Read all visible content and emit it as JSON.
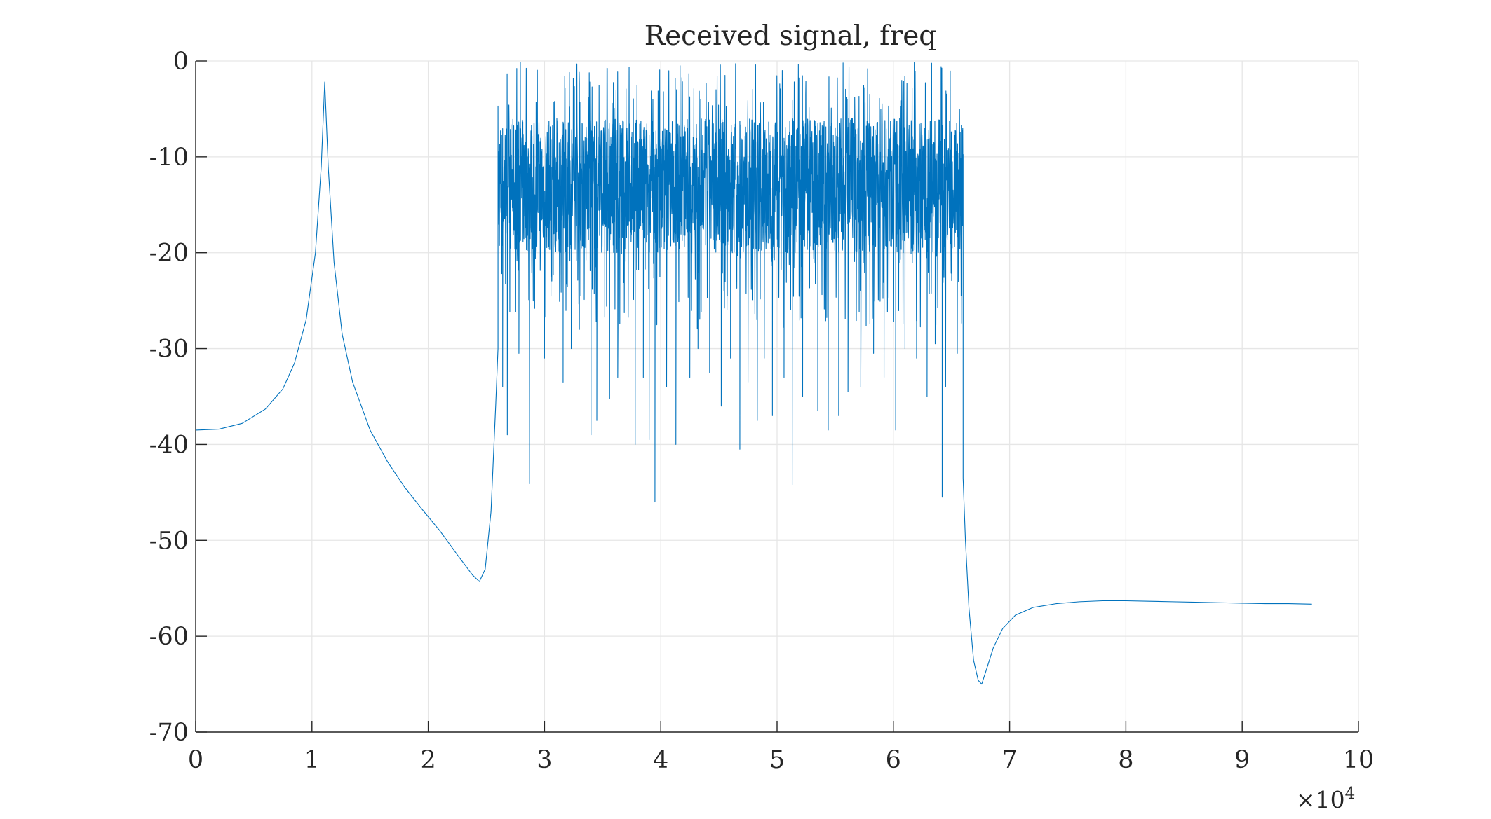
{
  "chart_data": {
    "type": "line",
    "title": "Received signal, freq",
    "xlabel": "",
    "ylabel": "",
    "xlim": [
      0,
      100000
    ],
    "ylim": [
      -70,
      0
    ],
    "x_exponent_label": "×10",
    "x_exponent_power": "4",
    "x_ticks": [
      0,
      10000,
      20000,
      30000,
      40000,
      50000,
      60000,
      70000,
      80000,
      90000,
      100000
    ],
    "x_tick_labels": [
      "0",
      "1",
      "2",
      "3",
      "4",
      "5",
      "6",
      "7",
      "8",
      "9",
      "10"
    ],
    "y_ticks": [
      0,
      -10,
      -20,
      -30,
      -40,
      -50,
      -60,
      -70
    ],
    "y_tick_labels": [
      "0",
      "-10",
      "-20",
      "-30",
      "-40",
      "-50",
      "-60",
      "-70"
    ],
    "grid": true,
    "line_color": "#0072BD",
    "series": [
      {
        "curve": [
          [
            0,
            -38.5
          ],
          [
            2000,
            -38.4
          ],
          [
            4000,
            -37.8
          ],
          [
            6000,
            -36.3
          ],
          [
            7500,
            -34.2
          ],
          [
            8500,
            -31.5
          ],
          [
            9500,
            -27.0
          ],
          [
            10300,
            -20.0
          ],
          [
            10800,
            -11.0
          ],
          [
            11100,
            -2.2
          ],
          [
            11400,
            -11.0
          ],
          [
            11900,
            -21.0
          ],
          [
            12600,
            -28.5
          ],
          [
            13500,
            -33.5
          ],
          [
            15000,
            -38.5
          ],
          [
            16500,
            -41.8
          ],
          [
            18000,
            -44.5
          ],
          [
            19500,
            -46.8
          ],
          [
            21000,
            -49.0
          ],
          [
            22500,
            -51.5
          ],
          [
            23800,
            -53.6
          ],
          [
            24400,
            -54.3
          ],
          [
            24900,
            -53.0
          ],
          [
            25400,
            -47.0
          ],
          [
            25800,
            -36.0
          ],
          [
            26000,
            -30.0
          ]
        ],
        "noise_band": {
          "x_start": 26000,
          "x_end": 66000,
          "core_range": [
            -20,
            -6
          ],
          "peak_max": -0.1,
          "dips": [
            [
              26400,
              -34.0
            ],
            [
              26800,
              -39.0
            ],
            [
              27800,
              -30.5
            ],
            [
              28700,
              -44.1
            ],
            [
              30000,
              -31.0
            ],
            [
              31600,
              -33.5
            ],
            [
              32300,
              -30.0
            ],
            [
              33000,
              -28.0
            ],
            [
              34000,
              -39.0
            ],
            [
              34500,
              -37.5
            ],
            [
              35600,
              -35.2
            ],
            [
              36300,
              -33.0
            ],
            [
              37800,
              -40.0
            ],
            [
              38500,
              -33.0
            ],
            [
              39000,
              -39.5
            ],
            [
              39500,
              -46.0
            ],
            [
              40500,
              -34.0
            ],
            [
              41300,
              -40.0
            ],
            [
              42500,
              -33.0
            ],
            [
              43200,
              -30.0
            ],
            [
              44200,
              -32.5
            ],
            [
              45200,
              -36.0
            ],
            [
              46000,
              -31.0
            ],
            [
              46800,
              -40.5
            ],
            [
              47500,
              -33.5
            ],
            [
              48300,
              -37.5
            ],
            [
              48900,
              -31.0
            ],
            [
              49600,
              -37.0
            ],
            [
              50600,
              -33.0
            ],
            [
              51300,
              -44.2
            ],
            [
              52200,
              -35.0
            ],
            [
              53500,
              -36.5
            ],
            [
              54400,
              -38.5
            ],
            [
              55300,
              -37.0
            ],
            [
              56100,
              -34.5
            ],
            [
              57200,
              -34.0
            ],
            [
              58300,
              -30.5
            ],
            [
              59200,
              -33.0
            ],
            [
              60200,
              -38.5
            ],
            [
              61000,
              -30.0
            ],
            [
              62000,
              -31.0
            ],
            [
              62900,
              -35.0
            ],
            [
              63600,
              -29.5
            ],
            [
              64200,
              -45.5
            ],
            [
              64500,
              -34.0
            ],
            [
              65500,
              -30.5
            ]
          ]
        },
        "tail": [
          [
            66000,
            -43.5
          ],
          [
            66200,
            -50.0
          ],
          [
            66500,
            -57.0
          ],
          [
            66900,
            -62.5
          ],
          [
            67300,
            -64.6
          ],
          [
            67600,
            -65.0
          ],
          [
            68000,
            -63.5
          ],
          [
            68600,
            -61.2
          ],
          [
            69400,
            -59.2
          ],
          [
            70500,
            -57.8
          ],
          [
            72000,
            -57.0
          ],
          [
            74000,
            -56.6
          ],
          [
            76000,
            -56.4
          ],
          [
            78000,
            -56.3
          ],
          [
            80000,
            -56.3
          ],
          [
            82000,
            -56.35
          ],
          [
            84000,
            -56.4
          ],
          [
            86000,
            -56.45
          ],
          [
            88000,
            -56.5
          ],
          [
            90000,
            -56.55
          ],
          [
            92000,
            -56.6
          ],
          [
            94000,
            -56.6
          ],
          [
            96000,
            -56.65
          ]
        ]
      }
    ]
  }
}
